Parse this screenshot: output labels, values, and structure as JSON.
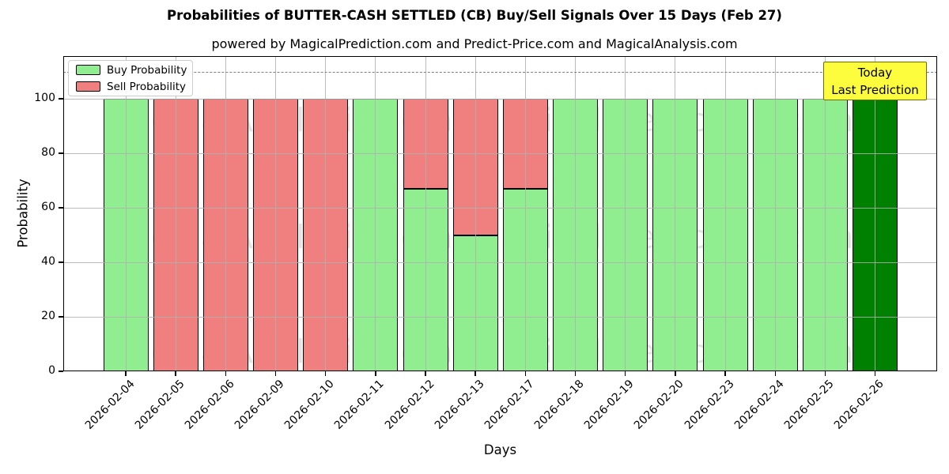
{
  "title": "Probabilities of BUTTER-CASH SETTLED (CB) Buy/Sell Signals Over 15 Days (Feb 27)",
  "subtitle": "powered by MagicalPrediction.com and Predict-Price.com and MagicalAnalysis.com",
  "legend": {
    "items": [
      {
        "label": "Buy Probability",
        "color": "#90ee90"
      },
      {
        "label": "Sell Probability",
        "color": "#f08080"
      }
    ]
  },
  "annotation": {
    "line1": "Today",
    "line2": "Last Prediction",
    "bg": "#fdfd3d",
    "border": "#6e6e00"
  },
  "watermarks": [
    "MagicalAnalysis.com",
    "MagicalPrediction.com"
  ],
  "x_axis": {
    "label": "Days"
  },
  "y_axis": {
    "label": "Probability",
    "ticks": [
      0,
      20,
      40,
      60,
      80,
      100
    ]
  },
  "colors": {
    "buy": "#90ee90",
    "sell": "#f08080",
    "today_bar": "#008000",
    "grid": "#b0b0b0",
    "dashed_line": "#7f7f7f",
    "bar_edge": "#000000"
  },
  "chart_data": {
    "type": "bar",
    "stacked": true,
    "title": "Probabilities of BUTTER-CASH SETTLED (CB) Buy/Sell Signals Over 15 Days (Feb 27)",
    "xlabel": "Days",
    "ylabel": "Probability",
    "ylim": [
      0,
      116
    ],
    "yticks": [
      0,
      20,
      40,
      60,
      80,
      100
    ],
    "dashed_line_y": 110,
    "grid": true,
    "legend_position": "upper left",
    "categories": [
      "2026-02-04",
      "2026-02-05",
      "2026-02-06",
      "2026-02-09",
      "2026-02-10",
      "2026-02-11",
      "2026-02-12",
      "2026-02-13",
      "2026-02-17",
      "2026-02-18",
      "2026-02-19",
      "2026-02-20",
      "2026-02-23",
      "2026-02-24",
      "2026-02-25",
      "2026-02-26"
    ],
    "series": [
      {
        "name": "Buy Probability",
        "color": "#90ee90",
        "values": [
          100,
          0,
          0,
          0,
          0,
          100,
          67,
          50,
          67,
          100,
          100,
          100,
          100,
          100,
          100,
          100
        ]
      },
      {
        "name": "Sell Probability",
        "color": "#f08080",
        "values": [
          0,
          100,
          100,
          100,
          100,
          0,
          33,
          50,
          33,
          0,
          0,
          0,
          0,
          0,
          0,
          0
        ]
      }
    ],
    "today_bar": {
      "category": "2026-02-26",
      "color": "#008000",
      "label": "Today Last Prediction"
    }
  }
}
